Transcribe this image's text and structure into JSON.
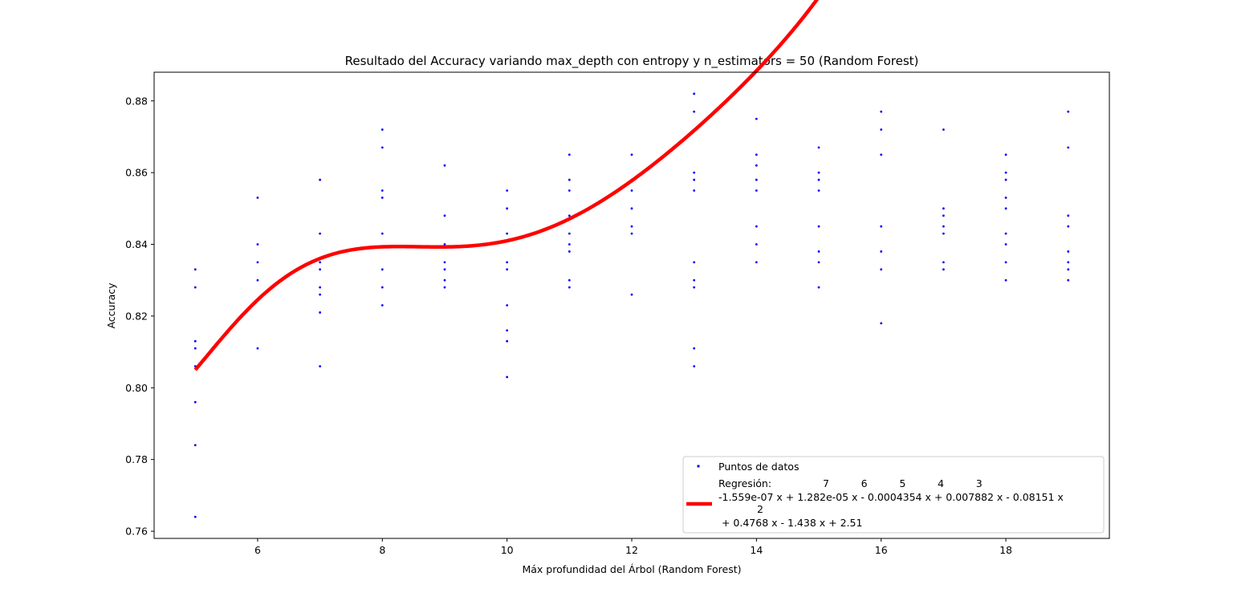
{
  "chart_data": {
    "type": "scatter",
    "title": "Resultado del Accuracy variando max_depth con entropy y n_estimators = 50 (Random Forest)",
    "xlabel": "Máx profundidad del Árbol (Random Forest)",
    "ylabel": "Accuracy",
    "xlim": [
      4.34,
      19.66
    ],
    "ylim": [
      0.758,
      0.888
    ],
    "xticks": [
      6,
      8,
      10,
      12,
      14,
      16,
      18
    ],
    "xtick_labels": [
      "6",
      "8",
      "10",
      "12",
      "14",
      "16",
      "18"
    ],
    "yticks": [
      0.76,
      0.78,
      0.8,
      0.82,
      0.84,
      0.86,
      0.88
    ],
    "ytick_labels": [
      "0.76",
      "0.78",
      "0.80",
      "0.82",
      "0.84",
      "0.86",
      "0.88"
    ],
    "colors": {
      "points": "#0000ff",
      "regression": "#ff0000",
      "axes": "#000000"
    },
    "series": [
      {
        "name": "Puntos de datos",
        "kind": "scatter",
        "points": [
          [
            5,
            0.833
          ],
          [
            5,
            0.828
          ],
          [
            5,
            0.813
          ],
          [
            5,
            0.811
          ],
          [
            5,
            0.806
          ],
          [
            5,
            0.796
          ],
          [
            5,
            0.784
          ],
          [
            5,
            0.764
          ],
          [
            6,
            0.853
          ],
          [
            6,
            0.84
          ],
          [
            6,
            0.835
          ],
          [
            6,
            0.83
          ],
          [
            6,
            0.811
          ],
          [
            7,
            0.858
          ],
          [
            7,
            0.843
          ],
          [
            7,
            0.835
          ],
          [
            7,
            0.833
          ],
          [
            7,
            0.828
          ],
          [
            7,
            0.826
          ],
          [
            7,
            0.821
          ],
          [
            7,
            0.806
          ],
          [
            8,
            0.872
          ],
          [
            8,
            0.867
          ],
          [
            8,
            0.855
          ],
          [
            8,
            0.853
          ],
          [
            8,
            0.843
          ],
          [
            8,
            0.833
          ],
          [
            8,
            0.828
          ],
          [
            8,
            0.823
          ],
          [
            9,
            0.862
          ],
          [
            9,
            0.848
          ],
          [
            9,
            0.84
          ],
          [
            9,
            0.835
          ],
          [
            9,
            0.833
          ],
          [
            9,
            0.83
          ],
          [
            9,
            0.828
          ],
          [
            10,
            0.855
          ],
          [
            10,
            0.85
          ],
          [
            10,
            0.843
          ],
          [
            10,
            0.835
          ],
          [
            10,
            0.833
          ],
          [
            10,
            0.823
          ],
          [
            10,
            0.816
          ],
          [
            10,
            0.813
          ],
          [
            10,
            0.803
          ],
          [
            11,
            0.865
          ],
          [
            11,
            0.858
          ],
          [
            11,
            0.855
          ],
          [
            11,
            0.848
          ],
          [
            11,
            0.843
          ],
          [
            11,
            0.84
          ],
          [
            11,
            0.838
          ],
          [
            11,
            0.83
          ],
          [
            11,
            0.828
          ],
          [
            12,
            0.865
          ],
          [
            12,
            0.858
          ],
          [
            12,
            0.855
          ],
          [
            12,
            0.85
          ],
          [
            12,
            0.845
          ],
          [
            12,
            0.843
          ],
          [
            12,
            0.826
          ],
          [
            13,
            0.882
          ],
          [
            13,
            0.877
          ],
          [
            13,
            0.86
          ],
          [
            13,
            0.858
          ],
          [
            13,
            0.855
          ],
          [
            13,
            0.835
          ],
          [
            13,
            0.83
          ],
          [
            13,
            0.828
          ],
          [
            13,
            0.811
          ],
          [
            13,
            0.806
          ],
          [
            14,
            0.875
          ],
          [
            14,
            0.865
          ],
          [
            14,
            0.862
          ],
          [
            14,
            0.858
          ],
          [
            14,
            0.855
          ],
          [
            14,
            0.845
          ],
          [
            14,
            0.84
          ],
          [
            14,
            0.835
          ],
          [
            15,
            0.867
          ],
          [
            15,
            0.86
          ],
          [
            15,
            0.858
          ],
          [
            15,
            0.855
          ],
          [
            15,
            0.845
          ],
          [
            15,
            0.838
          ],
          [
            15,
            0.835
          ],
          [
            15,
            0.828
          ],
          [
            16,
            0.877
          ],
          [
            16,
            0.872
          ],
          [
            16,
            0.865
          ],
          [
            16,
            0.845
          ],
          [
            16,
            0.838
          ],
          [
            16,
            0.833
          ],
          [
            16,
            0.818
          ],
          [
            17,
            0.872
          ],
          [
            17,
            0.85
          ],
          [
            17,
            0.848
          ],
          [
            17,
            0.845
          ],
          [
            17,
            0.843
          ],
          [
            17,
            0.835
          ],
          [
            17,
            0.833
          ],
          [
            18,
            0.865
          ],
          [
            18,
            0.86
          ],
          [
            18,
            0.858
          ],
          [
            18,
            0.853
          ],
          [
            18,
            0.85
          ],
          [
            18,
            0.843
          ],
          [
            18,
            0.84
          ],
          [
            18,
            0.835
          ],
          [
            18,
            0.83
          ],
          [
            19,
            0.877
          ],
          [
            19,
            0.867
          ],
          [
            19,
            0.848
          ],
          [
            19,
            0.845
          ],
          [
            19,
            0.838
          ],
          [
            19,
            0.835
          ],
          [
            19,
            0.833
          ],
          [
            19,
            0.83
          ]
        ]
      },
      {
        "name": "Regresión",
        "kind": "line",
        "coefficients_high_to_low": [
          -1.559e-07,
          1.282e-05,
          -0.0004354,
          0.007882,
          -0.08151,
          0.4768,
          -1.438,
          2.51
        ],
        "x_range": [
          5,
          19
        ]
      }
    ],
    "legend": {
      "position": "lower-right",
      "points_label": "Puntos de datos",
      "regression_label": "Regresión:",
      "line_exponents": "7          6          5          4          3",
      "line_main": "-1.559e-07 x + 1.282e-05 x - 0.0004354 x + 0.007882 x - 0.08151 x",
      "line_exponent2": "2",
      "line_tail": " + 0.4768 x - 1.438 x + 2.51"
    }
  }
}
